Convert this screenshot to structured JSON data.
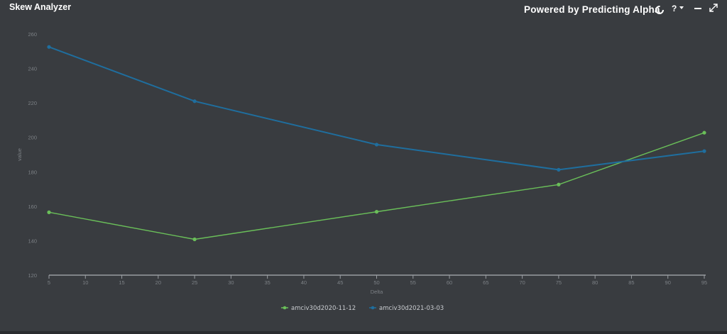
{
  "header": {
    "title": "Skew Analyzer",
    "powered_by": "Powered by Predicting Alpha",
    "help_label": "?",
    "icons": [
      "logo-ring-icon",
      "help-icon",
      "chevron-down-icon",
      "minimize-icon",
      "expand-icon"
    ]
  },
  "chart_data": {
    "type": "line",
    "xlabel": "Delta",
    "ylabel": "value",
    "xlim": [
      5,
      95
    ],
    "ylim": [
      120,
      260
    ],
    "x_ticks": [
      5,
      10,
      15,
      20,
      25,
      30,
      35,
      40,
      45,
      50,
      55,
      60,
      65,
      70,
      75,
      80,
      85,
      90,
      95
    ],
    "y_ticks": [
      120,
      140,
      160,
      180,
      200,
      220,
      240,
      260
    ],
    "legend_position": "bottom-center",
    "series": [
      {
        "name": "amciv30d2020-11-12",
        "color": "#6abf59",
        "points": [
          [
            5,
            156.5
          ],
          [
            25,
            140.8
          ],
          [
            50,
            156.8
          ],
          [
            75,
            172.6
          ],
          [
            95,
            202.7
          ]
        ]
      },
      {
        "name": "amciv30d2021-03-03",
        "color": "#1f6e9e",
        "points": [
          [
            5,
            252.5
          ],
          [
            25,
            221.0
          ],
          [
            50,
            195.8
          ],
          [
            75,
            181.2
          ],
          [
            95,
            192.0
          ]
        ]
      }
    ]
  }
}
